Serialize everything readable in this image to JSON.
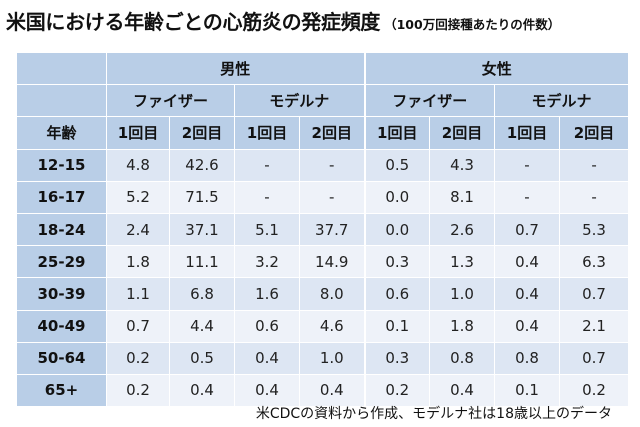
{
  "title": {
    "main": "米国における年齢ごとの心筋炎の発症頻度",
    "sub": "（100万回接種あたりの件数）"
  },
  "table": {
    "sex_headers": [
      "男性",
      "女性"
    ],
    "vaccine_headers": [
      "ファイザー",
      "モデルナ",
      "ファイザー",
      "モデルナ"
    ],
    "age_header": "年齢",
    "dose_headers": [
      "1回目",
      "2回目",
      "1回目",
      "2回目",
      "1回目",
      "2回目",
      "1回目",
      "2回目"
    ],
    "rows": [
      {
        "age": "12-15",
        "values": [
          "4.8",
          "42.6",
          "-",
          "-",
          "0.5",
          "4.3",
          "-",
          "-"
        ]
      },
      {
        "age": "16-17",
        "values": [
          "5.2",
          "71.5",
          "-",
          "-",
          "0.0",
          "8.1",
          "-",
          "-"
        ]
      },
      {
        "age": "18-24",
        "values": [
          "2.4",
          "37.1",
          "5.1",
          "37.7",
          "0.0",
          "2.6",
          "0.7",
          "5.3"
        ]
      },
      {
        "age": "25-29",
        "values": [
          "1.8",
          "11.1",
          "3.2",
          "14.9",
          "0.3",
          "1.3",
          "0.4",
          "6.3"
        ]
      },
      {
        "age": "30-39",
        "values": [
          "1.1",
          "6.8",
          "1.6",
          "8.0",
          "0.6",
          "1.0",
          "0.4",
          "0.7"
        ]
      },
      {
        "age": "40-49",
        "values": [
          "0.7",
          "4.4",
          "0.6",
          "4.6",
          "0.1",
          "1.8",
          "0.4",
          "2.1"
        ]
      },
      {
        "age": "50-64",
        "values": [
          "0.2",
          "0.5",
          "0.4",
          "1.0",
          "0.3",
          "0.8",
          "0.8",
          "0.7"
        ]
      },
      {
        "age": "65+",
        "values": [
          "0.2",
          "0.4",
          "0.4",
          "0.4",
          "0.2",
          "0.4",
          "0.1",
          "0.2"
        ]
      }
    ]
  },
  "note": "米CDCの資料から作成、モデルナ社は18歳以上のデータ",
  "colors": {
    "header_bg": "#b9cee7",
    "row_odd_bg": "#dde6f3",
    "row_even_bg": "#eef2f9"
  }
}
